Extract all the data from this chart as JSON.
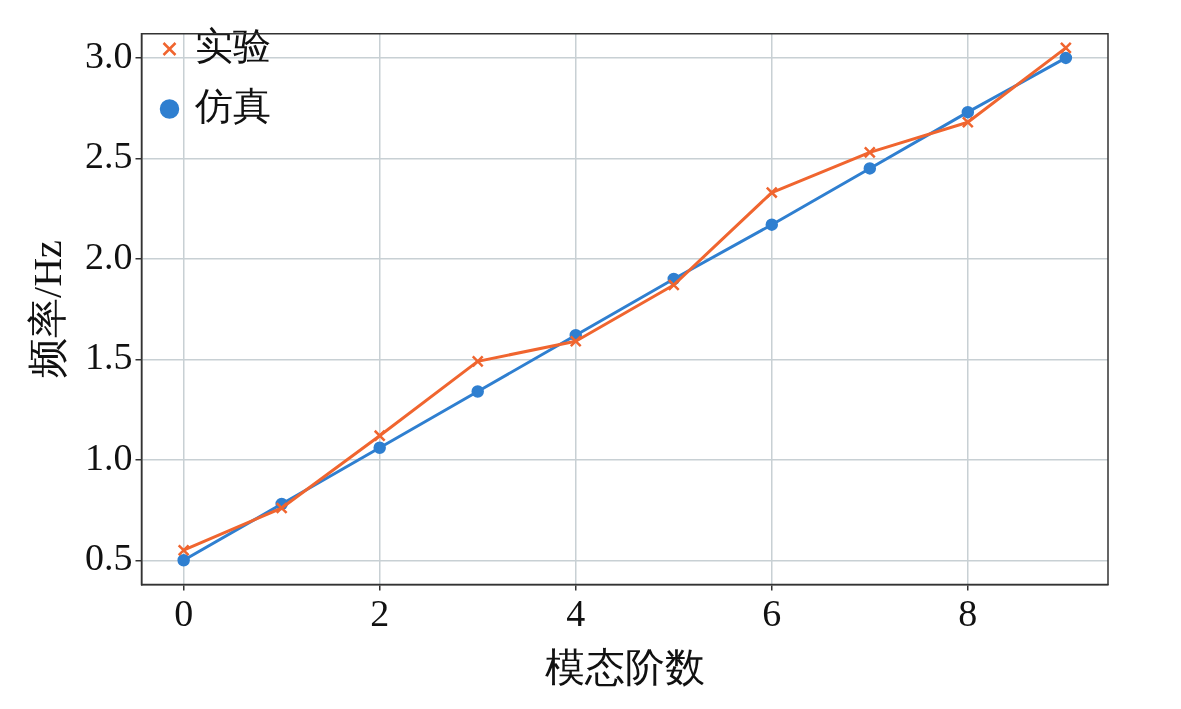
{
  "chart_data": {
    "type": "line",
    "xlabel": "模态阶数",
    "ylabel": "频率/Hz",
    "x": [
      0,
      1,
      2,
      3,
      4,
      5,
      6,
      7,
      8,
      9
    ],
    "series": [
      {
        "name": "仿真",
        "color": "#2f7fd0",
        "marker": "circle",
        "values": [
          0.5,
          0.78,
          1.06,
          1.34,
          1.62,
          1.9,
          2.17,
          2.45,
          2.73,
          3.0
        ]
      },
      {
        "name": "实验",
        "color": "#f0652f",
        "marker": "cross",
        "values": [
          0.55,
          0.76,
          1.12,
          1.49,
          1.59,
          1.87,
          2.33,
          2.53,
          2.68,
          3.05
        ]
      }
    ],
    "xlim": [
      -0.43,
      9.43
    ],
    "xticks": [
      0,
      2,
      4,
      6,
      8
    ],
    "ylim": [
      0.38,
      3.12
    ],
    "yticks": [
      0.5,
      {
        "value": 1,
        "label": "1.0"
      },
      1.5,
      {
        "value": 2,
        "label": "2.0"
      },
      2.5,
      {
        "value": 3,
        "label": "3.0"
      }
    ],
    "grid": true,
    "legend": "top left",
    "line_style": "solid"
  }
}
